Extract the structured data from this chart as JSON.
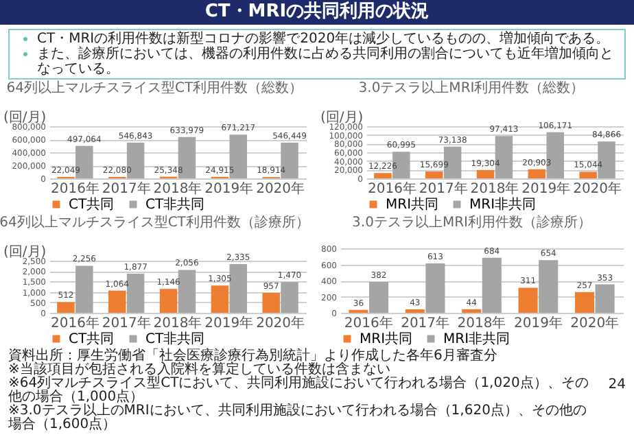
{
  "chart_data": [
    {
      "type": "other",
      "title": "CT・MRIの共同利用の状況",
      "annotations": [
        "CT・MRIの利用件数は新型コロナの影響で2020年は減少しているものの、増加傾向である。",
        "また、診療所においては、機器の利用件数に占める共同利用の割合についても近年増加傾向となっている。"
      ]
    },
    {
      "type": "bar",
      "title": "64列以上マルチスライス型CT利用件数（総数）",
      "ylabel": "(回/月)",
      "categories": [
        "2016年",
        "2017年",
        "2018年",
        "2019年",
        "2020年"
      ],
      "ylim": [
        0,
        800000
      ],
      "yticks": [
        0,
        {
          "value": 200000,
          "label": "200,000"
        },
        {
          "value": 400000,
          "label": "400,000"
        },
        {
          "value": 600000,
          "label": "600,000"
        },
        {
          "value": 800000,
          "label": "800,000"
        }
      ],
      "grid": "y",
      "legend": "bottom",
      "series": [
        {
          "name": "CT共同",
          "color": "#ed7d31",
          "values": [
            22049,
            22080,
            25348,
            24915,
            18914
          ],
          "value_labels": [
            "22,049",
            "22,080",
            "25,348",
            "24,915",
            "18,914"
          ]
        },
        {
          "name": "CT非共同",
          "color": "#a5a5a5",
          "values": [
            497064,
            546843,
            633979,
            671217,
            546449
          ],
          "value_labels": [
            "497,064",
            "546,843",
            "633,979",
            "671,217",
            "546,449"
          ]
        }
      ]
    },
    {
      "type": "bar",
      "title": "3.0テスラ以上MRI利用件数（総数）",
      "ylabel": "(回/月)",
      "categories": [
        "2016年",
        "2017年",
        "2018年",
        "2019年",
        "2020年"
      ],
      "ylim": [
        0,
        120000
      ],
      "yticks": [
        0,
        {
          "value": 20000,
          "label": "20,000"
        },
        {
          "value": 40000,
          "label": "40,000"
        },
        {
          "value": 60000,
          "label": "60,000"
        },
        {
          "value": 80000,
          "label": "80,000"
        },
        {
          "value": 100000,
          "label": "100,000"
        },
        {
          "value": 120000,
          "label": "120,000"
        }
      ],
      "grid": "y",
      "legend": "bottom",
      "series": [
        {
          "name": "MRI共同",
          "color": "#ed7d31",
          "values": [
            12226,
            15699,
            19304,
            20903,
            15044
          ],
          "value_labels": [
            "12,226",
            "15,699",
            "19,304",
            "20,903",
            "15,044"
          ]
        },
        {
          "name": "MRI非共同",
          "color": "#a5a5a5",
          "values": [
            60995,
            73138,
            97413,
            106171,
            84866
          ],
          "value_labels": [
            "60,995",
            "73,138",
            "97,413",
            "106,171",
            "84,866"
          ]
        }
      ]
    },
    {
      "type": "bar",
      "title": "64列以上マルチスライス型CT利用件数（診療所）",
      "ylabel": "(回/月)",
      "categories": [
        "2016年",
        "2017年",
        "2018年",
        "2019年",
        "2020年"
      ],
      "ylim": [
        0,
        2500
      ],
      "yticks": [
        0,
        500,
        {
          "value": 1000,
          "label": "1,000"
        },
        {
          "value": 1500,
          "label": "1,500"
        },
        {
          "value": 2000,
          "label": "2,000"
        },
        {
          "value": 2500,
          "label": "2,500"
        }
      ],
      "grid": "y",
      "legend": "bottom",
      "series": [
        {
          "name": "CT共同",
          "color": "#ed7d31",
          "values": [
            512,
            1064,
            1146,
            1305,
            957
          ],
          "value_labels": [
            "512",
            "1,064",
            "1,146",
            "1,305",
            "957"
          ]
        },
        {
          "name": "CT非共同",
          "color": "#a5a5a5",
          "values": [
            2256,
            1877,
            2056,
            2335,
            1470
          ],
          "value_labels": [
            "2,256",
            "1,877",
            "2,056",
            "2,335",
            "1,470"
          ]
        }
      ]
    },
    {
      "type": "bar",
      "title": "3.0テスラ以上MRI利用件数（診療所）",
      "categories": [
        "2016年",
        "2017年",
        "2018年",
        "2019年",
        "2020年"
      ],
      "ylim": [
        0,
        800
      ],
      "yticks": [
        0,
        200,
        400,
        600,
        800
      ],
      "grid": "y",
      "legend": "bottom",
      "series": [
        {
          "name": "MRI共同",
          "color": "#ed7d31",
          "values": [
            36,
            43,
            44,
            311,
            257
          ],
          "value_labels": [
            "36",
            "43",
            "44",
            "311",
            "257"
          ]
        },
        {
          "name": "MRI非共同",
          "color": "#a5a5a5",
          "values": [
            382,
            613,
            684,
            654,
            353
          ],
          "value_labels": [
            "382",
            "613",
            "684",
            "654",
            "353"
          ]
        }
      ]
    },
    {
      "type": "other",
      "annotations": [
        "資料出所：厚生労働省「社会医療診療行為別統計」より作成した各年6月審査分",
        "※当該項目が包括される入院料を算定している件数は含まない",
        "※64列マルチスライス型CTにおいて、共同利用施設において行われる場合（1,020点）、その他の場合（1,000点）",
        "※3.0テスラ以上のMRIにおいて、共同利用施設において行われる場合（1,620点）、その他の場合（1,600点）",
        "24"
      ]
    }
  ]
}
